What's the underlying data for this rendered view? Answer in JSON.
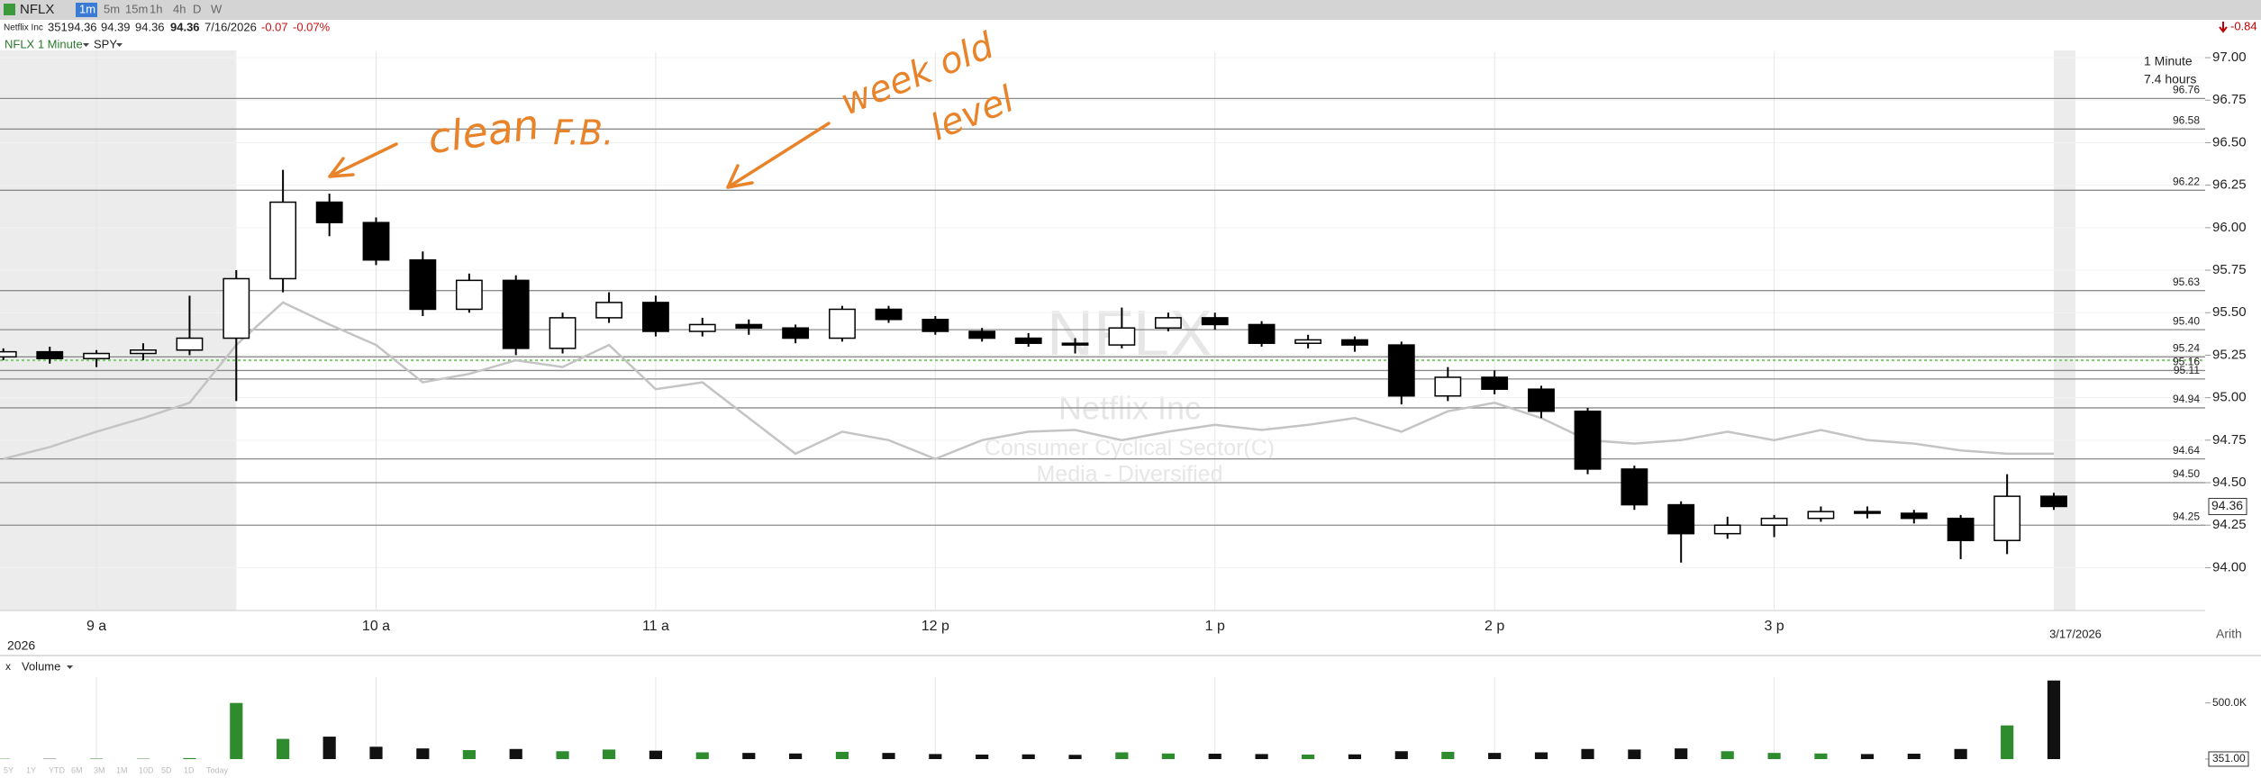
{
  "toolbar": {
    "symbol": "NFLX",
    "intervals": [
      "1m",
      "5m",
      "15m",
      "1h",
      "4h",
      "D",
      "W"
    ],
    "change": -0.84
  },
  "quote": {
    "name": "Netflix Inc",
    "volume": 351,
    "open": 94.36,
    "high": 94.39,
    "low": 94.36,
    "last": 94.36,
    "date": "7/16/2026",
    "change": -0.07,
    "change_percent": "-0.07%"
  },
  "range_buttons": [
    "5Y",
    "1Y",
    "YTD",
    "6M",
    "3M",
    "1M",
    "10D",
    "5D",
    "1D",
    "Today"
  ],
  "chart_data": {
    "type": "candlestick",
    "watermark": {
      "symbol": "NFLX",
      "name": "Netflix Inc",
      "sector": "Consumer Cyclical Sector(C)",
      "industry": "Media - Diversified"
    },
    "timeframe": "1 Minute",
    "span": "7.4 hours",
    "date_left": "2026",
    "date_right": "3/17/2026",
    "scale": "Arith",
    "annotations": [
      {
        "text": "clean"
      },
      {
        "text": "F.B."
      },
      {
        "text": "week old"
      },
      {
        "text": "level"
      }
    ],
    "annotation_color": "#e8832a",
    "x": [
      8.667,
      8.833,
      9,
      9.167,
      9.333,
      9.5,
      9.667,
      9.833,
      10,
      10.167,
      10.333,
      10.5,
      10.667,
      10.833,
      11,
      11.167,
      11.333,
      11.5,
      11.667,
      11.833,
      12,
      12.167,
      12.333,
      12.5,
      12.667,
      12.833,
      13,
      13.167,
      13.333,
      13.5,
      13.667,
      13.833,
      14,
      14.167,
      14.333,
      14.5,
      14.667,
      14.833,
      15,
      15.167,
      15.333,
      15.5,
      15.667,
      15.833,
      16
    ],
    "xlim": [
      8.655,
      16.232
    ],
    "xticks": [
      {
        "value": 9,
        "label": "9 a"
      },
      {
        "value": 10,
        "label": "10 a"
      },
      {
        "value": 11,
        "label": "11 a"
      },
      {
        "value": 12,
        "label": "12 p"
      },
      {
        "value": 13,
        "label": "1 p"
      },
      {
        "value": 14,
        "label": "2 p"
      },
      {
        "value": 15,
        "label": "3 p"
      }
    ],
    "regular_session": [
      9.5,
      16
    ],
    "ylim": [
      93.748,
      97.032
    ],
    "yticks": [
      {
        "value": 94,
        "label": "94.00"
      },
      {
        "value": 94.25,
        "label": "94.25"
      },
      {
        "value": 94.5,
        "label": "94.50"
      },
      {
        "value": 94.75,
        "label": "94.75"
      },
      {
        "value": 95,
        "label": "95.00"
      },
      {
        "value": 95.25,
        "label": "95.25"
      },
      {
        "value": 95.5,
        "label": "95.50"
      },
      {
        "value": 95.75,
        "label": "95.75"
      },
      {
        "value": 96,
        "label": "96.00"
      },
      {
        "value": 96.25,
        "label": "96.25"
      },
      {
        "value": 96.5,
        "label": "96.50"
      },
      {
        "value": 96.75,
        "label": "96.75"
      },
      {
        "value": 97,
        "label": "97.00"
      }
    ],
    "grid": true,
    "series": [
      {
        "name": "NFLX 1 Minute",
        "up_color": "#ffffff",
        "down_color": "#000000",
        "open": [
          95.24,
          95.27,
          95.23,
          95.26,
          95.28,
          95.35,
          95.7,
          96.15,
          96.03,
          95.81,
          95.52,
          95.69,
          95.29,
          95.47,
          95.56,
          95.39,
          95.43,
          95.41,
          95.35,
          95.52,
          95.46,
          95.39,
          95.35,
          95.32,
          95.31,
          95.41,
          95.47,
          95.43,
          95.32,
          95.34,
          95.31,
          95.01,
          95.12,
          95.05,
          94.92,
          94.58,
          94.37,
          94.2,
          94.25,
          94.29,
          94.33,
          94.32,
          94.29,
          94.16,
          94.42
        ],
        "high": [
          95.29,
          95.3,
          95.28,
          95.32,
          95.6,
          95.75,
          96.34,
          96.2,
          96.06,
          95.86,
          95.73,
          95.72,
          95.5,
          95.62,
          95.6,
          95.47,
          95.46,
          95.43,
          95.54,
          95.54,
          95.48,
          95.41,
          95.38,
          95.35,
          95.53,
          95.5,
          95.5,
          95.45,
          95.37,
          95.36,
          95.33,
          95.18,
          95.16,
          95.07,
          94.94,
          94.6,
          94.39,
          94.3,
          94.31,
          94.36,
          94.36,
          94.34,
          94.31,
          94.55,
          94.44
        ],
        "low": [
          95.22,
          95.2,
          95.18,
          95.22,
          95.25,
          94.98,
          95.62,
          95.95,
          95.78,
          95.48,
          95.5,
          95.25,
          95.26,
          95.44,
          95.36,
          95.36,
          95.37,
          95.32,
          95.33,
          95.44,
          95.37,
          95.33,
          95.3,
          95.26,
          95.29,
          95.39,
          95.4,
          95.3,
          95.29,
          95.27,
          94.96,
          94.98,
          95.02,
          94.88,
          94.55,
          94.34,
          94.03,
          94.17,
          94.18,
          94.27,
          94.29,
          94.26,
          94.05,
          94.08,
          94.34
        ],
        "close": [
          95.27,
          95.23,
          95.26,
          95.28,
          95.35,
          95.7,
          96.15,
          96.03,
          95.81,
          95.52,
          95.69,
          95.29,
          95.47,
          95.56,
          95.39,
          95.43,
          95.41,
          95.35,
          95.52,
          95.46,
          95.39,
          95.35,
          95.32,
          95.31,
          95.41,
          95.47,
          95.43,
          95.32,
          95.34,
          95.31,
          95.01,
          95.12,
          95.05,
          94.92,
          94.58,
          94.37,
          94.2,
          94.25,
          94.29,
          94.33,
          94.32,
          94.29,
          94.16,
          94.42,
          94.36
        ]
      },
      {
        "name": "SPY",
        "color": "#c4c4c4",
        "values": [
          94.64,
          94.71,
          94.8,
          94.88,
          94.97,
          95.31,
          95.56,
          95.43,
          95.31,
          95.09,
          95.14,
          95.22,
          95.18,
          95.31,
          95.05,
          95.09,
          94.88,
          94.67,
          94.8,
          94.75,
          94.64,
          94.75,
          94.8,
          94.81,
          94.75,
          94.8,
          94.84,
          94.81,
          94.84,
          94.88,
          94.8,
          94.92,
          94.97,
          94.88,
          94.75,
          94.73,
          94.75,
          94.8,
          94.75,
          94.81,
          94.75,
          94.73,
          94.69,
          94.67,
          94.67
        ]
      }
    ],
    "levels": [
      {
        "value": 96.76,
        "label": "96.76"
      },
      {
        "value": 96.58,
        "label": "96.58"
      },
      {
        "value": 96.22,
        "label": "96.22"
      },
      {
        "value": 95.63,
        "label": "95.63"
      },
      {
        "value": 95.4,
        "label": "95.40"
      },
      {
        "value": 95.24,
        "label": "95.24"
      },
      {
        "value": 95.16,
        "label": "95.16"
      },
      {
        "value": 95.11,
        "label": "95.11"
      },
      {
        "value": 94.94,
        "label": "94.94"
      },
      {
        "value": 94.64,
        "label": "94.64"
      },
      {
        "value": 94.5,
        "label": "94.50"
      },
      {
        "value": 94.25,
        "label": "94.25"
      }
    ],
    "level_color": "#8c8c8c",
    "reference_line": {
      "value": 95.22,
      "color": "#7ccf6a"
    },
    "volume": {
      "name": "Volume",
      "up_color": "#2e8b2e",
      "down_color": "#111111",
      "values": [
        3000,
        2500,
        4000,
        3500,
        9000,
        500000,
        180000,
        200000,
        110000,
        95000,
        80000,
        90000,
        70000,
        85000,
        75000,
        60000,
        55000,
        50000,
        65000,
        55000,
        45000,
        40000,
        42000,
        38000,
        60000,
        50000,
        48000,
        45000,
        40000,
        42000,
        70000,
        65000,
        55000,
        60000,
        90000,
        85000,
        95000,
        70000,
        55000,
        50000,
        45000,
        48000,
        90000,
        300000,
        700000
      ],
      "ylim": [
        0,
        730000
      ],
      "yticks": [
        {
          "value": 500000,
          "label": "500.0K"
        },
        {
          "value": 351,
          "label": "351.00"
        }
      ]
    }
  }
}
